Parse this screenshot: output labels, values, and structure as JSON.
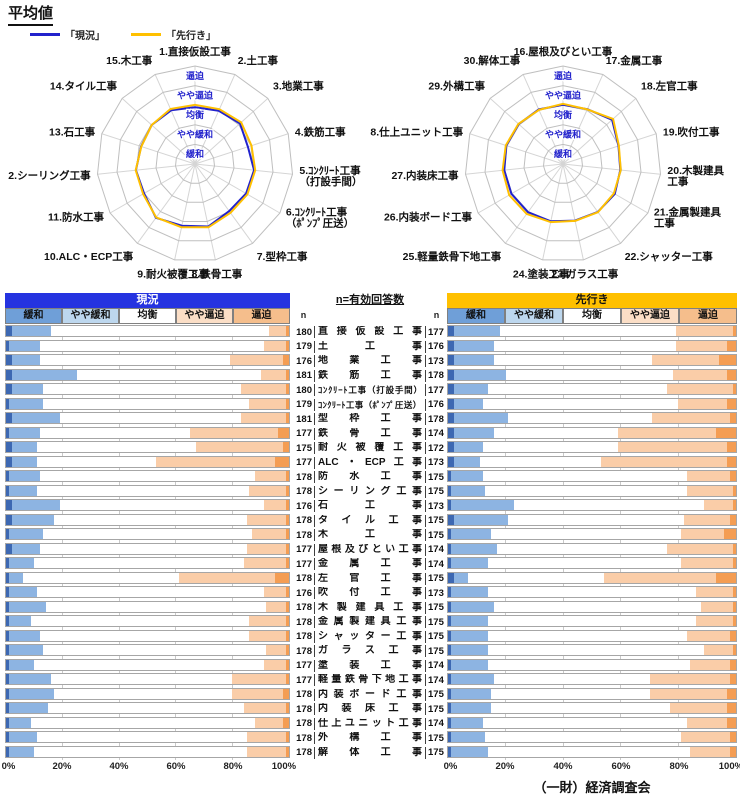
{
  "page": {
    "title": "平均値",
    "footer": "（一財）経済調査会"
  },
  "legend": [
    {
      "label": "「現況」",
      "color": "#2222CC"
    },
    {
      "label": "「先行き」",
      "color": "#FFC000"
    }
  ],
  "colors": {
    "current_line": "#2222CC",
    "outlook_line": "#FFC000",
    "current_header_bg": "#2533E0",
    "current_header_text": "#FFFFFF",
    "outlook_header_bg": "#FFC000",
    "outlook_header_text": "#111111",
    "ring_label": "#2222CC",
    "grid_ring": "#BFBFBF",
    "grid_spoke": "#D5D5D5",
    "cat_header_bg": [
      "#6F9FD8",
      "#BDD7EE",
      "#FFFFFF",
      "#FBDEC6",
      "#F5BE8C"
    ],
    "segment": [
      "#3D68B2",
      "#8DB4E2",
      "#FFFFFF",
      "#FACDA8",
      "#F49D53"
    ]
  },
  "scale_labels": [
    "緩和",
    "やや緩和",
    "均衡",
    "やや逼迫",
    "逼迫"
  ],
  "bars": {
    "current_title": "現況",
    "outlook_title": "先行き",
    "n_header": "n=有効回答数",
    "n_col": "n",
    "axis_ticks": [
      "0%",
      "20%",
      "40%",
      "60%",
      "80%",
      "100%"
    ]
  },
  "chart_data": [
    {
      "type": "radar",
      "position": "top-left",
      "range": [
        0,
        5
      ],
      "rings": [
        "緩和",
        "やや緩和",
        "均衡",
        "やや逼迫",
        "逼迫"
      ],
      "axes": [
        "1.直接仮設工事",
        "2.土工事",
        "3.地業工事",
        "4.鉄筋工事",
        "5.ｺﾝｸﾘｰﾄ工事\n（打設手間）",
        "6.ｺﾝｸﾘｰﾄ工事\n（ﾎﾟﾝﾌﾟ圧送）",
        "7.型枠工事",
        "8.鉄骨工事",
        "9.耐火被覆工事",
        "10.ALC・ECP工事",
        "11.防水工事",
        "12.シーリング工事",
        "13.石工事",
        "14.タイル工事",
        "15.木工事"
      ],
      "series": [
        {
          "name": "現況",
          "values": [
            2.9,
            2.97,
            3.09,
            2.84,
            3.03,
            3.01,
            2.97,
            3.26,
            3.22,
            3.39,
            3.0,
            3.03,
            2.89,
            2.97,
            3.0
          ]
        },
        {
          "name": "先行き",
          "values": [
            3.02,
            3.06,
            3.17,
            3.03,
            3.09,
            3.09,
            3.08,
            3.3,
            3.3,
            3.37,
            3.06,
            3.04,
            2.88,
            2.97,
            3.07
          ]
        }
      ]
    },
    {
      "type": "radar",
      "position": "top-right",
      "range": [
        0,
        5
      ],
      "rings": [
        "緩和",
        "やや緩和",
        "均衡",
        "やや逼迫",
        "逼迫"
      ],
      "axes": [
        "16.屋根及びとい工事",
        "17.金属工事",
        "18.左官工事",
        "19.吹付工事",
        "20.木製建具\n工事",
        "21.金属製建具\n工事",
        "22.シャッター工事",
        "23.ガラス工事",
        "24.塗装工事",
        "25.軽量鉄骨下地工事",
        "26.内装ボード工事",
        "27.内装床工事",
        "28.仕上ユニット工事",
        "29.外構工事",
        "30.解体工事"
      ],
      "series": [
        {
          "name": "現況",
          "values": [
            3.02,
            3.06,
            3.37,
            2.98,
            2.94,
            3.05,
            3.02,
            2.95,
            2.99,
            3.04,
            3.04,
            3.01,
            3.04,
            3.04,
            3.05
          ]
        },
        {
          "name": "先行き",
          "values": [
            3.07,
            3.05,
            3.44,
            3.0,
            2.96,
            3.0,
            3.04,
            2.97,
            3.03,
            3.15,
            3.17,
            3.1,
            3.07,
            3.06,
            3.02
          ]
        }
      ]
    },
    {
      "type": "bar",
      "position": "bottom-left",
      "title": "現況",
      "stack_categories": [
        "緩和",
        "やや緩和",
        "均衡",
        "やや逼迫",
        "逼迫"
      ],
      "xlim": [
        0,
        100
      ],
      "unit": "%",
      "rows": [
        {
          "label": "直接仮設工事",
          "n": 180,
          "values": [
            2,
            14,
            77,
            6,
            1
          ]
        },
        {
          "label": "土工事",
          "n": 179,
          "values": [
            1,
            11,
            79,
            8,
            1
          ]
        },
        {
          "label": "地業工事",
          "n": 176,
          "values": [
            2,
            10,
            67,
            19,
            2
          ]
        },
        {
          "label": "鉄筋工事",
          "n": 181,
          "values": [
            2,
            23,
            65,
            9,
            1
          ]
        },
        {
          "label": "ｺﾝｸﾘｰﾄ工事（打設手間）",
          "n": 180,
          "values": [
            2,
            11,
            70,
            16,
            1
          ]
        },
        {
          "label": "ｺﾝｸﾘｰﾄ工事（ﾎﾟﾝﾌﾟ圧送）",
          "n": 179,
          "values": [
            1,
            12,
            73,
            13,
            1
          ]
        },
        {
          "label": "型枠工事",
          "n": 181,
          "values": [
            2,
            17,
            64,
            16,
            1
          ]
        },
        {
          "label": "鉄骨工事",
          "n": 177,
          "values": [
            1,
            11,
            53,
            31,
            4
          ]
        },
        {
          "label": "耐火被覆工事",
          "n": 175,
          "values": [
            2,
            9,
            56,
            31,
            2
          ]
        },
        {
          "label": "ALC・ECP工事",
          "n": 177,
          "values": [
            2,
            9,
            42,
            42,
            5
          ]
        },
        {
          "label": "防水工事",
          "n": 178,
          "values": [
            1,
            11,
            76,
            11,
            1
          ]
        },
        {
          "label": "シーリング工事",
          "n": 178,
          "values": [
            1,
            10,
            75,
            13,
            1
          ]
        },
        {
          "label": "石工事",
          "n": 176,
          "values": [
            2,
            17,
            72,
            8,
            1
          ]
        },
        {
          "label": "タイル工事",
          "n": 178,
          "values": [
            2,
            15,
            68,
            14,
            1
          ]
        },
        {
          "label": "木工事",
          "n": 178,
          "values": [
            1,
            12,
            74,
            12,
            1
          ]
        },
        {
          "label": "屋根及びとい工事",
          "n": 177,
          "values": [
            2,
            10,
            73,
            14,
            1
          ]
        },
        {
          "label": "金属工事",
          "n": 177,
          "values": [
            1,
            9,
            74,
            15,
            1
          ]
        },
        {
          "label": "左官工事",
          "n": 178,
          "values": [
            1,
            5,
            55,
            34,
            5
          ]
        },
        {
          "label": "吹付工事",
          "n": 176,
          "values": [
            1,
            10,
            80,
            8,
            1
          ]
        },
        {
          "label": "木製建具工事",
          "n": 178,
          "values": [
            1,
            13,
            78,
            7,
            1
          ]
        },
        {
          "label": "金属製建具工事",
          "n": 178,
          "values": [
            1,
            8,
            77,
            13,
            1
          ]
        },
        {
          "label": "シャッター工事",
          "n": 178,
          "values": [
            1,
            11,
            74,
            13,
            1
          ]
        },
        {
          "label": "ガラス工事",
          "n": 178,
          "values": [
            1,
            12,
            79,
            7,
            1
          ]
        },
        {
          "label": "塗装工事",
          "n": 177,
          "values": [
            1,
            9,
            81,
            8,
            1
          ]
        },
        {
          "label": "軽量鉄骨下地工事",
          "n": 177,
          "values": [
            1,
            15,
            64,
            19,
            1
          ]
        },
        {
          "label": "内装ボード工事",
          "n": 178,
          "values": [
            1,
            16,
            63,
            18,
            2
          ]
        },
        {
          "label": "内装床工事",
          "n": 178,
          "values": [
            1,
            14,
            69,
            15,
            1
          ]
        },
        {
          "label": "仕上ユニット工事",
          "n": 178,
          "values": [
            1,
            8,
            79,
            10,
            2
          ]
        },
        {
          "label": "外構工事",
          "n": 178,
          "values": [
            1,
            10,
            74,
            14,
            1
          ]
        },
        {
          "label": "解体工事",
          "n": 178,
          "values": [
            1,
            9,
            75,
            14,
            1
          ]
        }
      ]
    },
    {
      "type": "bar",
      "position": "bottom-right",
      "title": "先行き",
      "stack_categories": [
        "緩和",
        "やや緩和",
        "均衡",
        "やや逼迫",
        "逼迫"
      ],
      "xlim": [
        0,
        100
      ],
      "unit": "%",
      "rows": [
        {
          "label": "直接仮設工事",
          "n": 177,
          "values": [
            2,
            16,
            61,
            20,
            1
          ]
        },
        {
          "label": "土工事",
          "n": 176,
          "values": [
            2,
            14,
            63,
            18,
            3
          ]
        },
        {
          "label": "地業工事",
          "n": 173,
          "values": [
            2,
            14,
            55,
            23,
            6
          ]
        },
        {
          "label": "鉄筋工事",
          "n": 178,
          "values": [
            2,
            18,
            58,
            19,
            3
          ]
        },
        {
          "label": "ｺﾝｸﾘｰﾄ工事（打設手間）",
          "n": 177,
          "values": [
            2,
            12,
            62,
            23,
            1
          ]
        },
        {
          "label": "ｺﾝｸﾘｰﾄ工事（ﾎﾟﾝﾌﾟ圧送）",
          "n": 176,
          "values": [
            2,
            10,
            68,
            17,
            3
          ]
        },
        {
          "label": "型枠工事",
          "n": 178,
          "values": [
            2,
            19,
            50,
            27,
            2
          ]
        },
        {
          "label": "鉄骨工事",
          "n": 174,
          "values": [
            2,
            14,
            43,
            34,
            7
          ]
        },
        {
          "label": "耐火被覆工事",
          "n": 172,
          "values": [
            2,
            10,
            47,
            38,
            3
          ]
        },
        {
          "label": "ALC・ECP工事",
          "n": 173,
          "values": [
            2,
            9,
            42,
            44,
            3
          ]
        },
        {
          "label": "防水工事",
          "n": 175,
          "values": [
            1,
            11,
            71,
            15,
            2
          ]
        },
        {
          "label": "シーリング工事",
          "n": 175,
          "values": [
            1,
            12,
            70,
            16,
            1
          ]
        },
        {
          "label": "石工事",
          "n": 173,
          "values": [
            1,
            22,
            66,
            10,
            1
          ]
        },
        {
          "label": "タイル工事",
          "n": 175,
          "values": [
            2,
            19,
            61,
            16,
            2
          ]
        },
        {
          "label": "木工事",
          "n": 175,
          "values": [
            1,
            14,
            66,
            15,
            4
          ]
        },
        {
          "label": "屋根及びとい工事",
          "n": 174,
          "values": [
            1,
            16,
            59,
            23,
            1
          ]
        },
        {
          "label": "金属工事",
          "n": 174,
          "values": [
            1,
            13,
            67,
            18,
            1
          ]
        },
        {
          "label": "左官工事",
          "n": 175,
          "values": [
            2,
            5,
            47,
            39,
            7
          ]
        },
        {
          "label": "吹付工事",
          "n": 173,
          "values": [
            1,
            13,
            72,
            13,
            1
          ]
        },
        {
          "label": "木製建具工事",
          "n": 175,
          "values": [
            1,
            15,
            72,
            11,
            1
          ]
        },
        {
          "label": "金属製建具工事",
          "n": 175,
          "values": [
            1,
            13,
            72,
            13,
            1
          ]
        },
        {
          "label": "シャッター工事",
          "n": 175,
          "values": [
            1,
            13,
            69,
            15,
            2
          ]
        },
        {
          "label": "ガラス工事",
          "n": 175,
          "values": [
            1,
            13,
            75,
            10,
            1
          ]
        },
        {
          "label": "塗装工事",
          "n": 174,
          "values": [
            1,
            13,
            70,
            14,
            2
          ]
        },
        {
          "label": "軽量鉄骨下地工事",
          "n": 174,
          "values": [
            1,
            15,
            54,
            28,
            2
          ]
        },
        {
          "label": "内装ボード工事",
          "n": 175,
          "values": [
            1,
            14,
            55,
            27,
            3
          ]
        },
        {
          "label": "内装床工事",
          "n": 175,
          "values": [
            1,
            14,
            62,
            20,
            3
          ]
        },
        {
          "label": "仕上ユニット工事",
          "n": 174,
          "values": [
            1,
            11,
            71,
            14,
            3
          ]
        },
        {
          "label": "外構工事",
          "n": 175,
          "values": [
            1,
            12,
            68,
            17,
            2
          ]
        },
        {
          "label": "解体工事",
          "n": 175,
          "values": [
            1,
            13,
            70,
            14,
            2
          ]
        }
      ]
    }
  ]
}
